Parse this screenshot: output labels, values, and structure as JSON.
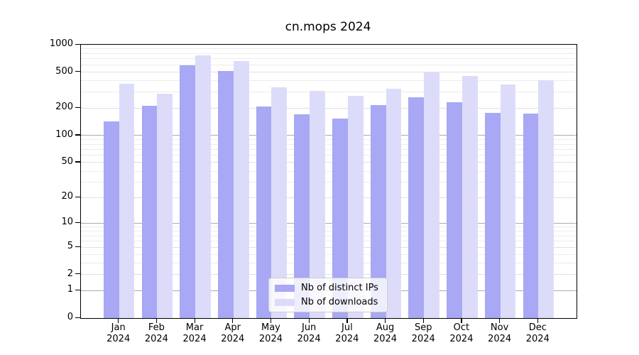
{
  "chart_data": {
    "type": "bar",
    "title": "cn.mops 2024",
    "categories": [
      "Jan",
      "Feb",
      "Mar",
      "Apr",
      "May",
      "Jun",
      "Jul",
      "Aug",
      "Sep",
      "Oct",
      "Nov",
      "Dec"
    ],
    "x_sublabel": "2024",
    "series": [
      {
        "name": "Nb of distinct IPs",
        "color": "#a8a8f5",
        "values": [
          143,
          211,
          589,
          516,
          208,
          172,
          154,
          218,
          266,
          232,
          177,
          176
        ]
      },
      {
        "name": "Nb of downloads",
        "color": "#dcdcfa",
        "values": [
          375,
          290,
          764,
          666,
          342,
          312,
          276,
          329,
          500,
          455,
          368,
          406
        ]
      }
    ],
    "yscale": "log1p",
    "ylim": [
      0,
      1000
    ],
    "yticks": [
      1000,
      500,
      200,
      100,
      50,
      20,
      10,
      5,
      2,
      1,
      0
    ],
    "grid": true,
    "legend_position": "lower center",
    "colors": {
      "major_grid": "#ababab",
      "labeled_minor_grid": "#e0e0e0",
      "minor_grid": "#ececec",
      "spine": "#000000"
    }
  }
}
